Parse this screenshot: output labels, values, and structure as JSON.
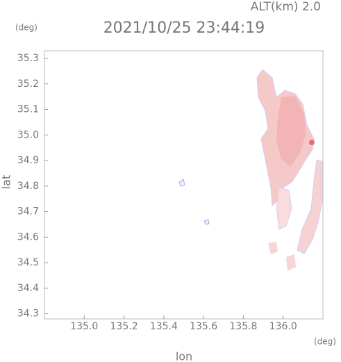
{
  "chart_data": {
    "type": "map",
    "title": "2021/10/25 23:44:19",
    "subtitle": "ALT(km)  2.0",
    "y_unit": "(deg)",
    "x_unit": "(deg)",
    "xlabel": "lon",
    "ylabel": "lat",
    "xlim": [
      134.8,
      136.2
    ],
    "ylim": [
      34.28,
      35.33
    ],
    "xticks": [
      {
        "value": 135.0,
        "label": "135.0"
      },
      135.2,
      135.4,
      135.6,
      135.8,
      {
        "value": 136.0,
        "label": "136.0"
      }
    ],
    "yticks": [
      34.3,
      34.4,
      34.5,
      34.6,
      34.7,
      34.8,
      34.9,
      {
        "value": 35.0,
        "label": "35.0"
      },
      35.1,
      35.2,
      35.3
    ]
  }
}
